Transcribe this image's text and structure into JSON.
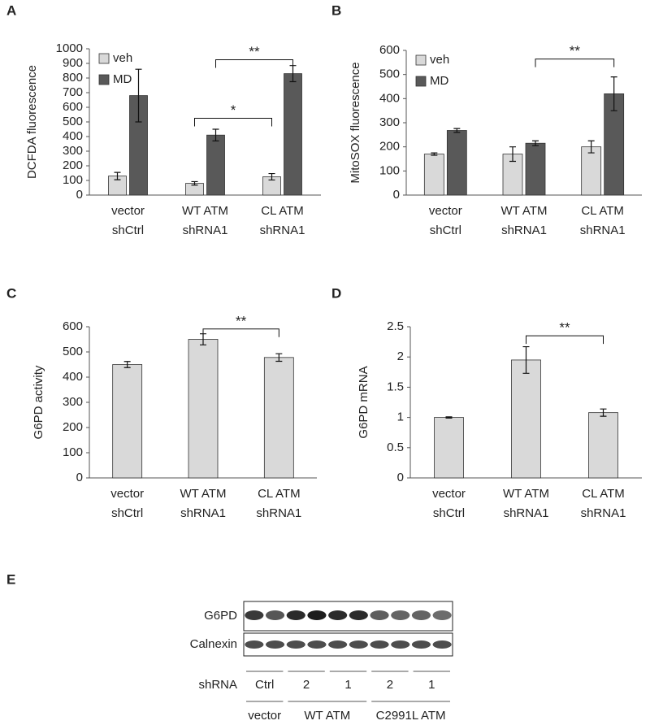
{
  "chart_data": [
    {
      "type": "bar",
      "panel": "A",
      "ylabel": "DCFDA fluorescence",
      "categories": [
        [
          "vector",
          "shCtrl"
        ],
        [
          "WT ATM",
          "shRNA1"
        ],
        [
          "CL ATM",
          "shRNA1"
        ]
      ],
      "series": [
        {
          "name": "veh",
          "color": "#d9d9d9",
          "values": [
            130,
            80,
            125
          ],
          "errors": [
            25,
            12,
            22
          ]
        },
        {
          "name": "MD",
          "color": "#595959",
          "values": [
            680,
            410,
            830
          ],
          "errors": [
            180,
            40,
            55
          ]
        }
      ],
      "ylim": [
        0,
        1000
      ],
      "yticks": [
        0,
        100,
        200,
        300,
        400,
        500,
        600,
        700,
        800,
        900,
        1000
      ],
      "legend": "top-left",
      "annotations": [
        "*",
        "**"
      ]
    },
    {
      "type": "bar",
      "panel": "B",
      "ylabel": "MitoSOX fluorescence",
      "categories": [
        [
          "vector",
          "shCtrl"
        ],
        [
          "WT ATM",
          "shRNA1"
        ],
        [
          "CL ATM",
          "shRNA1"
        ]
      ],
      "series": [
        {
          "name": "veh",
          "color": "#d9d9d9",
          "values": [
            170,
            170,
            200
          ],
          "errors": [
            5,
            30,
            25
          ]
        },
        {
          "name": "MD",
          "color": "#595959",
          "values": [
            268,
            215,
            420
          ],
          "errors": [
            8,
            10,
            70
          ]
        }
      ],
      "ylim": [
        0,
        600
      ],
      "yticks": [
        0,
        100,
        200,
        300,
        400,
        500,
        600
      ],
      "legend": "top-left",
      "annotations": [
        "**"
      ]
    },
    {
      "type": "bar",
      "panel": "C",
      "ylabel": "G6PD activity",
      "categories": [
        [
          "vector",
          "shCtrl"
        ],
        [
          "WT ATM",
          "shRNA1"
        ],
        [
          "CL ATM",
          "shRNA1"
        ]
      ],
      "series": [
        {
          "color": "#d9d9d9",
          "values": [
            450,
            550,
            478
          ],
          "errors": [
            12,
            22,
            15
          ]
        }
      ],
      "ylim": [
        0,
        600
      ],
      "yticks": [
        0,
        100,
        200,
        300,
        400,
        500,
        600
      ],
      "annotations": [
        "**"
      ]
    },
    {
      "type": "bar",
      "panel": "D",
      "ylabel": "G6PD mRNA",
      "categories": [
        [
          "vector",
          "shCtrl"
        ],
        [
          "WT ATM",
          "shRNA1"
        ],
        [
          "CL ATM",
          "shRNA1"
        ]
      ],
      "series": [
        {
          "color": "#d9d9d9",
          "values": [
            1,
            1.95,
            1.08
          ],
          "errors": [
            0.01,
            0.22,
            0.06
          ]
        }
      ],
      "ylim": [
        0,
        2.5
      ],
      "yticks": [
        0,
        0.5,
        1,
        1.5,
        2,
        2.5
      ],
      "annotations": [
        "**"
      ]
    }
  ],
  "blot": {
    "panel": "E",
    "rows": [
      "G6PD",
      "Calnexin"
    ],
    "shrna_label": "shRNA",
    "shrna": [
      "Ctrl",
      "2",
      "1",
      "2",
      "1"
    ],
    "groups": [
      "vector",
      "WT ATM",
      "C2991L ATM"
    ]
  }
}
